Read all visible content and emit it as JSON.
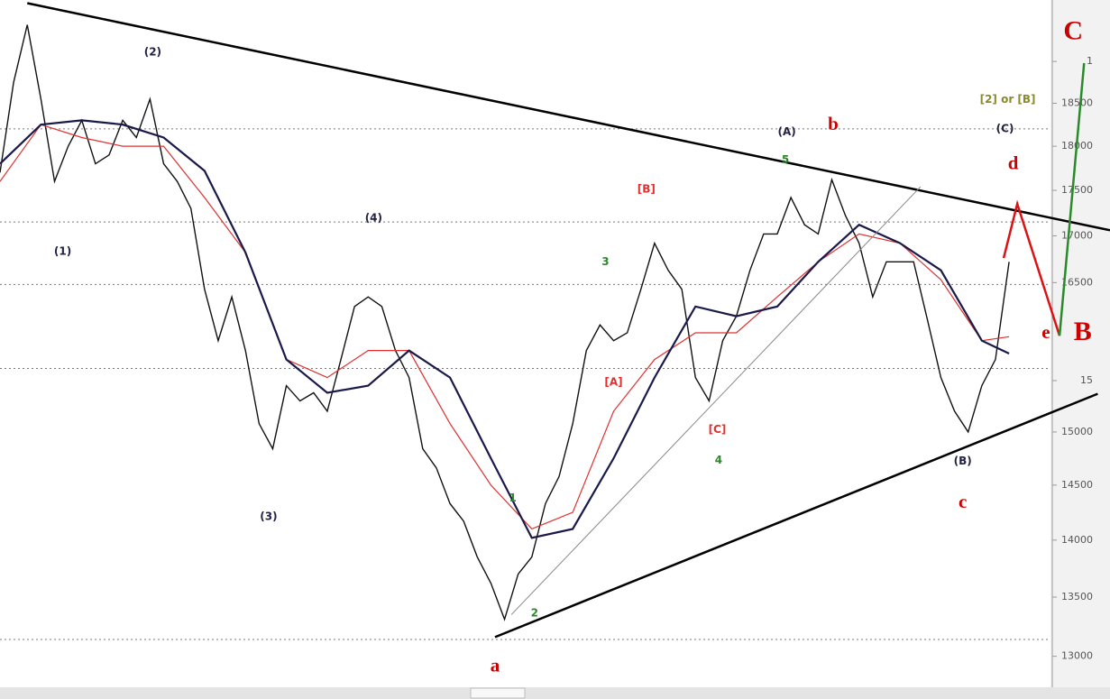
{
  "chart_data": {
    "type": "line",
    "log_scale": true,
    "xlim": [
      0,
      81.4
    ],
    "ylim": [
      12760,
      19760
    ],
    "yticks": [
      13000,
      13500,
      14000,
      14500,
      15000,
      {
        "value": 15500,
        "label": "15"
      },
      16500,
      17000,
      17500,
      18000,
      18500,
      {
        "value": 19000,
        "label": "1"
      }
    ],
    "x": [
      0,
      1,
      2,
      3,
      4,
      5,
      6,
      7,
      8,
      9,
      10,
      11,
      12,
      13,
      14,
      15,
      16,
      17,
      18,
      19,
      20,
      21,
      22,
      23,
      24,
      25,
      26,
      27,
      28,
      29,
      30,
      31,
      32,
      33,
      34,
      35,
      36,
      37,
      38,
      39,
      40,
      41,
      42,
      43,
      44,
      45,
      46,
      47,
      48,
      49,
      50,
      51,
      52,
      53,
      54,
      55,
      56,
      57,
      58,
      59,
      60,
      61,
      62,
      63,
      64,
      65,
      66,
      67,
      68,
      69,
      70,
      71,
      72,
      73,
      74
    ],
    "series": [
      {
        "color": "#111111",
        "values": [
          17700,
          18750,
          19450,
          18550,
          17600,
          18000,
          18300,
          17800,
          17900,
          18300,
          18100,
          18550,
          17800,
          17600,
          17300,
          16430,
          15900,
          16350,
          15800,
          15080,
          14840,
          15450,
          15300,
          15380,
          15200,
          15710,
          16250,
          16350,
          16250,
          15800,
          15530,
          14840,
          14660,
          14330,
          14170,
          13850,
          13620,
          13310,
          13700,
          13850,
          14330,
          14580,
          15080,
          15800,
          16060,
          15900,
          15980,
          16430,
          16920,
          16630,
          16430,
          15530,
          15300,
          15900,
          16150,
          16630,
          17020,
          17020,
          17420,
          17120,
          17020,
          17620,
          17220,
          16920,
          16350,
          16720,
          16720,
          16720,
          16120,
          15530,
          15200,
          15000,
          15450,
          15710,
          16720
        ]
      },
      {
        "color": "#e03030",
        "x": [
          0,
          3,
          6,
          9,
          12,
          15,
          18,
          21,
          24,
          27,
          30,
          33,
          36,
          39,
          42,
          45,
          48,
          51,
          54,
          57,
          60,
          63,
          66,
          69,
          72,
          74
        ],
        "values": [
          17600,
          18250,
          18100,
          18000,
          18000,
          17420,
          16820,
          15710,
          15530,
          15800,
          15800,
          15080,
          14500,
          14100,
          14250,
          15200,
          15710,
          15980,
          15980,
          16350,
          16720,
          17020,
          16920,
          16530,
          15900,
          15940
        ]
      },
      {
        "color": "#1a1a4a",
        "x": [
          0,
          3,
          6,
          9,
          12,
          15,
          18,
          21,
          24,
          27,
          30,
          33,
          36,
          39,
          42,
          45,
          48,
          51,
          54,
          57,
          60,
          63,
          66,
          69,
          72,
          74
        ],
        "values": [
          17800,
          18250,
          18300,
          18250,
          18100,
          17720,
          16820,
          15710,
          15380,
          15450,
          15800,
          15530,
          14750,
          14020,
          14100,
          14750,
          15530,
          16250,
          16150,
          16250,
          16720,
          17120,
          16920,
          16630,
          15900,
          15770
        ]
      }
    ],
    "hlines": [
      18200,
      17150,
      16480,
      15620,
      13140
    ],
    "trendlines": [
      {
        "color": "#000000",
        "x": [
          2,
          81.4
        ],
        "y": [
          19720,
          17060
        ]
      },
      {
        "color": "#000000",
        "x": [
          36.3,
          80.5
        ],
        "y": [
          13160,
          15370
        ]
      },
      {
        "color": "#888888",
        "x": [
          37.5,
          67.5
        ],
        "y": [
          13350,
          17540
        ]
      },
      {
        "color": "#dd1111",
        "x": [
          73.6,
          74.6,
          77.7
        ],
        "y": [
          16760,
          17350,
          15950
        ]
      },
      {
        "color": "#2a8a2a",
        "x": [
          77.7,
          79.5
        ],
        "y": [
          15950,
          18980
        ]
      }
    ],
    "annotations": [
      {
        "text": "(2)",
        "x": 11.2,
        "y": 19110,
        "color": "#222244"
      },
      {
        "text": "(1)",
        "x": 4.6,
        "y": 16830,
        "color": "#222244"
      },
      {
        "text": "(3)",
        "x": 19.7,
        "y": 14210,
        "color": "#222244"
      },
      {
        "text": "(4)",
        "x": 27.4,
        "y": 17190,
        "color": "#222244"
      },
      {
        "text": "1",
        "x": 37.6,
        "y": 14380,
        "color": "#2a8a2a"
      },
      {
        "text": "2",
        "x": 39.2,
        "y": 13360,
        "color": "#2a8a2a"
      },
      {
        "text": "3",
        "x": 44.4,
        "y": 16720,
        "color": "#2a8a2a"
      },
      {
        "text": "4",
        "x": 52.7,
        "y": 14730,
        "color": "#2a8a2a"
      },
      {
        "text": "5",
        "x": 57.6,
        "y": 17840,
        "color": "#2a8a2a"
      },
      {
        "text": "[A]",
        "x": 45.0,
        "y": 15480,
        "color": "#e03030"
      },
      {
        "text": "[B]",
        "x": 47.4,
        "y": 17510,
        "color": "#e03030"
      },
      {
        "text": "[C]",
        "x": 52.6,
        "y": 15020,
        "color": "#e03030"
      },
      {
        "text": "(A)",
        "x": 57.7,
        "y": 18160,
        "color": "#222244"
      },
      {
        "text": "(B)",
        "x": 70.6,
        "y": 14720,
        "color": "#222244"
      },
      {
        "text": "(C)",
        "x": 73.7,
        "y": 18200,
        "color": "#222244"
      },
      {
        "text": "b",
        "x": 61.1,
        "y": 18240,
        "color": "#cc0000"
      },
      {
        "text": "a",
        "x": 36.3,
        "y": 12910,
        "color": "#cc0000"
      },
      {
        "text": "c",
        "x": 70.6,
        "y": 14330,
        "color": "#cc0000"
      },
      {
        "text": "d",
        "x": 74.3,
        "y": 17790,
        "color": "#cc0000"
      },
      {
        "text": "e",
        "x": 76.7,
        "y": 15970,
        "color": "#cc0000"
      },
      {
        "text": "B",
        "x": 79.4,
        "y": 15970,
        "color": "#cc0000"
      },
      {
        "text": "C",
        "x": 78.7,
        "y": 19350,
        "color": "#cc0000"
      },
      {
        "text": "[2] or [B]",
        "x": 73.9,
        "y": 18540,
        "color": "#8a8a2a"
      }
    ]
  }
}
